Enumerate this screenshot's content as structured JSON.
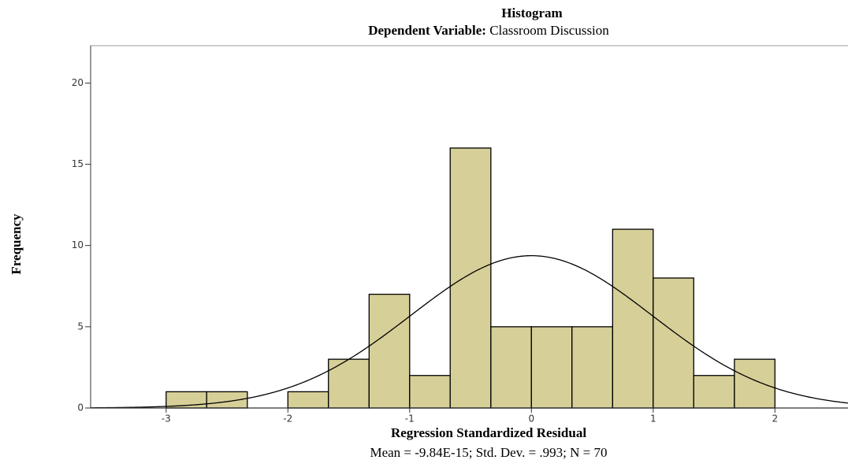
{
  "chart_data": {
    "type": "histogram",
    "title": "Histogram",
    "subtitle": {
      "label": "Dependent Variable:",
      "text": "Classroom Discussion"
    },
    "x_label": "Regression Standardized Residual",
    "y_label": "Frequency",
    "footnote": "Mean = -9.84E-15; Std. Dev. = .993; N = 70",
    "bins": [
      -3,
      -2.667,
      -2.333,
      -2,
      -1.667,
      -1.333,
      -1,
      -0.667,
      -0.333,
      0,
      0.333,
      0.667,
      1,
      1.333,
      1.667,
      2
    ],
    "values": [
      1,
      1,
      0,
      1,
      3,
      7,
      2,
      16,
      5,
      5,
      5,
      11,
      8,
      2,
      3
    ],
    "color": "#d6cf98",
    "normal_curve": {
      "mean": -9.84e-15,
      "std": 0.993,
      "n": 70
    },
    "xlim": [
      -3.62,
      2.6
    ],
    "ylim": [
      0,
      22.3
    ],
    "xticks": [
      -3,
      -2,
      -1,
      0,
      1,
      2
    ],
    "yticks": [
      0,
      5,
      10,
      15,
      20
    ]
  }
}
